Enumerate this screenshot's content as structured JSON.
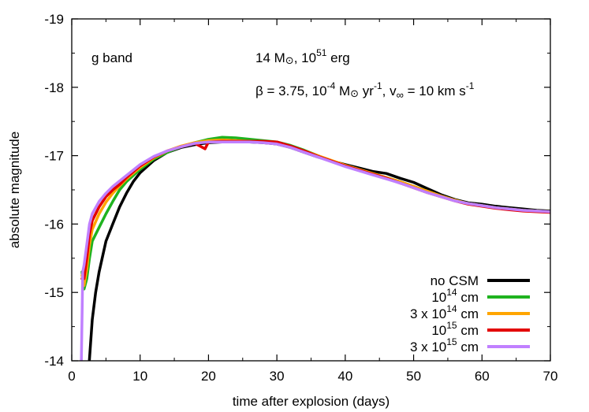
{
  "chart_data": {
    "type": "line",
    "xlabel": "time after explosion (days)",
    "ylabel": "absolute magnitude",
    "xlim": [
      0,
      70
    ],
    "ylim": [
      -14,
      -19
    ],
    "y_axis_inverted": true,
    "grid": false,
    "legend_placement": "bottom-right",
    "xticks": [
      "0",
      "10",
      "20",
      "30",
      "40",
      "50",
      "60",
      "70"
    ],
    "yticks": [
      "-14",
      "-15",
      "-16",
      "-17",
      "-18",
      "-19"
    ],
    "annotations": {
      "band": "g band",
      "model": {
        "mass_text": "14 M",
        "energy_base": ", 10",
        "energy_exp": "51",
        "energy_unit": " erg"
      },
      "csm": {
        "beta_text": "β = 3.75, 10",
        "rate_exp": "-4",
        "rate_unit_a": " M",
        "rate_unit_b": " yr",
        "rate_unit_exp": "-1",
        "vinf_text": ", v",
        "vinf_sub": "∞",
        "vinf_value": " = 10 km s",
        "vinf_exp": "-1"
      }
    },
    "series": [
      {
        "name": "no CSM",
        "color": "#000000",
        "x": [
          2.5,
          3,
          3.5,
          4,
          5,
          6,
          7,
          8,
          9,
          10,
          12,
          14,
          16,
          18,
          20,
          22,
          24,
          26,
          28,
          30,
          32,
          34,
          36,
          38,
          40,
          42,
          44,
          46,
          48,
          50,
          52,
          54,
          56,
          58,
          60,
          62,
          64,
          66,
          68,
          70
        ],
        "y": [
          -13.9,
          -14.6,
          -15.0,
          -15.3,
          -15.75,
          -16.0,
          -16.25,
          -16.45,
          -16.62,
          -16.75,
          -16.93,
          -17.05,
          -17.12,
          -17.16,
          -17.19,
          -17.2,
          -17.2,
          -17.2,
          -17.19,
          -17.17,
          -17.12,
          -17.05,
          -16.98,
          -16.92,
          -16.87,
          -16.82,
          -16.77,
          -16.74,
          -16.67,
          -16.61,
          -16.52,
          -16.43,
          -16.36,
          -16.31,
          -16.29,
          -16.26,
          -16.24,
          -16.22,
          -16.2,
          -16.19
        ]
      },
      {
        "name": "10^14 cm",
        "color": "#1fb31f",
        "x": [
          1.5,
          1.8,
          2.2,
          2.6,
          3,
          4,
          5,
          6,
          7,
          8,
          10,
          12,
          14,
          16,
          18,
          20,
          22,
          24,
          26,
          28,
          30,
          32,
          34,
          36,
          38,
          40,
          42,
          44,
          46,
          48,
          50,
          52,
          54,
          56,
          58,
          60,
          62,
          64,
          66,
          68,
          70
        ],
        "y": [
          -15.3,
          -15.05,
          -15.2,
          -15.5,
          -15.75,
          -15.95,
          -16.15,
          -16.33,
          -16.5,
          -16.62,
          -16.8,
          -16.95,
          -17.05,
          -17.13,
          -17.19,
          -17.24,
          -17.27,
          -17.26,
          -17.24,
          -17.22,
          -17.2,
          -17.15,
          -17.08,
          -17.0,
          -16.92,
          -16.86,
          -16.8,
          -16.74,
          -16.68,
          -16.62,
          -16.55,
          -16.48,
          -16.41,
          -16.35,
          -16.3,
          -16.27,
          -16.24,
          -16.22,
          -16.2,
          -16.19,
          -16.18
        ]
      },
      {
        "name": "3 x 10^14 cm",
        "color": "#ffa500",
        "x": [
          1.5,
          1.8,
          2.2,
          2.6,
          3,
          4,
          5,
          6,
          7,
          8,
          10,
          12,
          14,
          16,
          18,
          20,
          22,
          24,
          26,
          28,
          30,
          32,
          34,
          36,
          38,
          40,
          42,
          44,
          46,
          48,
          50,
          52,
          54,
          56,
          58,
          60,
          62,
          64,
          66,
          68,
          70
        ],
        "y": [
          -15.25,
          -15.1,
          -15.35,
          -15.7,
          -15.92,
          -16.15,
          -16.32,
          -16.45,
          -16.56,
          -16.66,
          -16.83,
          -16.97,
          -17.07,
          -17.14,
          -17.19,
          -17.22,
          -17.23,
          -17.22,
          -17.21,
          -17.2,
          -17.18,
          -17.13,
          -17.07,
          -17.0,
          -16.93,
          -16.86,
          -16.8,
          -16.74,
          -16.68,
          -16.62,
          -16.55,
          -16.48,
          -16.41,
          -16.35,
          -16.3,
          -16.27,
          -16.24,
          -16.22,
          -16.2,
          -16.19,
          -16.18
        ]
      },
      {
        "name": "10^15 cm",
        "color": "#e30000",
        "x": [
          1.5,
          1.8,
          2.2,
          2.6,
          3,
          4,
          5,
          6,
          7,
          8,
          10,
          12,
          14,
          16,
          18,
          19.5,
          20,
          22,
          24,
          26,
          28,
          30,
          32,
          34,
          36,
          38,
          40,
          42,
          44,
          46,
          48,
          50,
          52,
          54,
          56,
          58,
          60,
          62,
          64,
          66,
          68,
          70
        ],
        "y": [
          -15.2,
          -15.2,
          -15.5,
          -15.85,
          -16.05,
          -16.25,
          -16.4,
          -16.5,
          -16.58,
          -16.68,
          -16.85,
          -16.98,
          -17.07,
          -17.13,
          -17.18,
          -17.1,
          -17.2,
          -17.21,
          -17.21,
          -17.21,
          -17.21,
          -17.2,
          -17.14,
          -17.07,
          -16.99,
          -16.92,
          -16.85,
          -16.79,
          -16.73,
          -16.67,
          -16.6,
          -16.53,
          -16.46,
          -16.4,
          -16.34,
          -16.29,
          -16.26,
          -16.23,
          -16.21,
          -16.19,
          -16.18,
          -16.17
        ]
      },
      {
        "name": "3 x 10^15 cm",
        "color": "#c080ff",
        "x": [
          1.4,
          1.5,
          1.6,
          1.8,
          2.2,
          2.6,
          3,
          4,
          5,
          6,
          7,
          8,
          10,
          12,
          14,
          16,
          18,
          20,
          22,
          24,
          26,
          28,
          30,
          32,
          34,
          36,
          38,
          40,
          42,
          44,
          46,
          48,
          50,
          52,
          54,
          56,
          58,
          60,
          62,
          64,
          66,
          68,
          70
        ],
        "y": [
          -13.95,
          -14.6,
          -15.3,
          -15.4,
          -15.7,
          -16.0,
          -16.15,
          -16.33,
          -16.45,
          -16.55,
          -16.63,
          -16.71,
          -16.87,
          -16.99,
          -17.07,
          -17.13,
          -17.18,
          -17.2,
          -17.2,
          -17.2,
          -17.2,
          -17.19,
          -17.17,
          -17.12,
          -17.05,
          -16.98,
          -16.91,
          -16.84,
          -16.78,
          -16.72,
          -16.66,
          -16.6,
          -16.53,
          -16.46,
          -16.4,
          -16.34,
          -16.3,
          -16.27,
          -16.24,
          -16.22,
          -16.2,
          -16.19,
          -16.18
        ]
      }
    ],
    "legend_labels": [
      {
        "pre": "no CSM",
        "exp": "",
        "post": ""
      },
      {
        "pre": "10",
        "exp": "14",
        "post": " cm"
      },
      {
        "pre": "3 x 10",
        "exp": "14",
        "post": " cm"
      },
      {
        "pre": "10",
        "exp": "15",
        "post": " cm"
      },
      {
        "pre": "3 x 10",
        "exp": "15",
        "post": " cm"
      }
    ]
  }
}
